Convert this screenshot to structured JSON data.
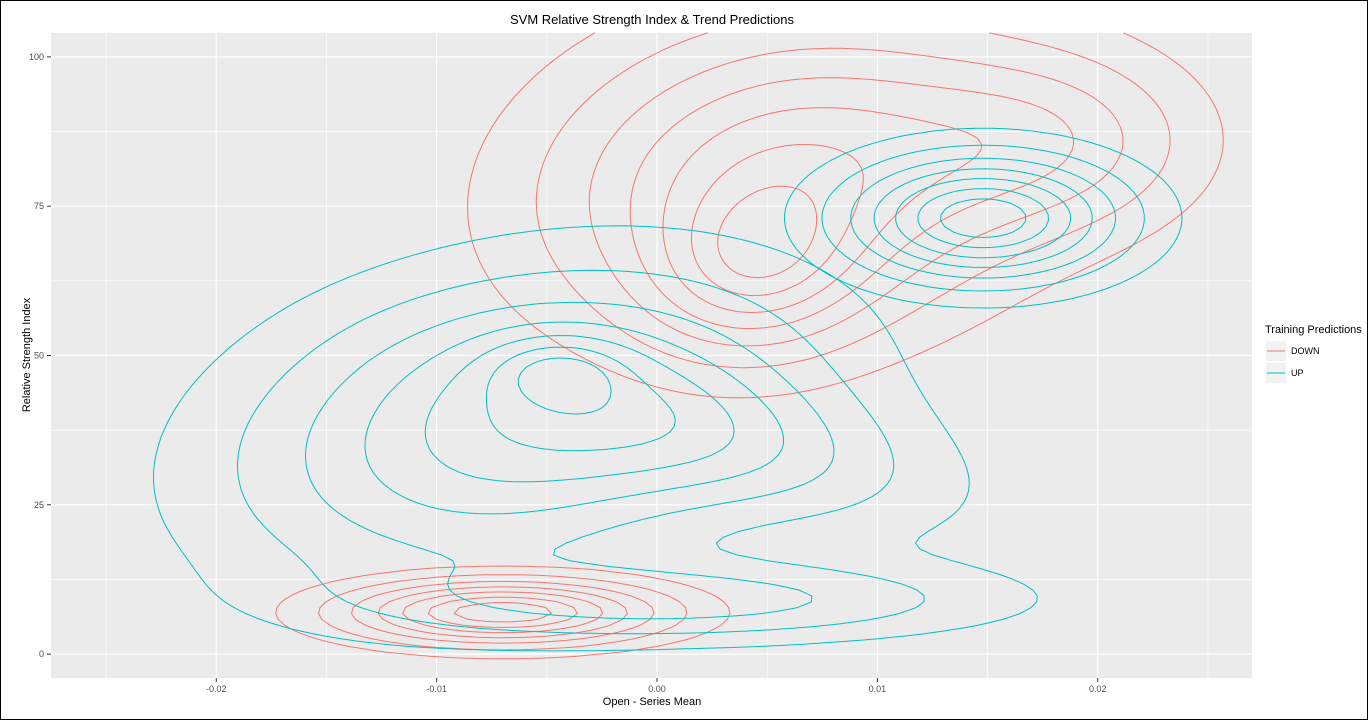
{
  "chart_data": {
    "type": "contour",
    "title": "SVM Relative Strength Index & Trend Predictions",
    "xlabel": "Open - Series Mean",
    "ylabel": "Relative Strength Index",
    "xlim": [
      -0.0275,
      0.027
    ],
    "ylim": [
      -4,
      104
    ],
    "x_ticks": [
      -0.02,
      -0.01,
      0.0,
      0.01,
      0.02
    ],
    "x_tick_labels": [
      "-0.02",
      "-0.01",
      "0.00",
      "0.01",
      "0.02"
    ],
    "y_ticks": [
      0,
      25,
      50,
      75,
      100
    ],
    "y_tick_labels": [
      "0",
      "25",
      "50",
      "75",
      "100"
    ],
    "grid": true,
    "legend": {
      "title": "Training Predictions",
      "position": "right",
      "entries": [
        {
          "label": "DOWN",
          "color": "#F8766D"
        },
        {
          "label": "UP",
          "color": "#00BFC4"
        }
      ]
    },
    "panel_background": "#EBEBEB",
    "grid_color": "#FFFFFF",
    "series": [
      {
        "name": "DOWN",
        "color": "#F8766D",
        "components": [
          {
            "mode_a": {
              "cx": 0.006,
              "cy": 80,
              "sx": 0.0072,
              "sy": 17,
              "rho": 0.15,
              "w": 1.0
            },
            "mode_b": {
              "cx": 0.0045,
              "cy": 64,
              "sx": 0.0032,
              "sy": 9,
              "rho": 0.1,
              "w": 0.55
            },
            "mode_c": {
              "cx": 0.018,
              "cy": 86,
              "sx": 0.0045,
              "sy": 10,
              "rho": 0.0,
              "w": 0.45
            }
          },
          {
            "mode_a": {
              "cx": -0.007,
              "cy": 7,
              "sx": 0.0048,
              "sy": 3.6,
              "rho": 0.0,
              "w": 1.0
            }
          }
        ]
      },
      {
        "name": "UP",
        "color": "#00BFC4",
        "components": [
          {
            "mode_a": {
              "cx": -0.006,
              "cy": 38,
              "sx": 0.0085,
              "sy": 17,
              "rho": 0.25,
              "w": 1.0
            },
            "mode_b": {
              "cx": -0.0045,
              "cy": 48,
              "sx": 0.0022,
              "sy": 4,
              "rho": 0.0,
              "w": 0.35
            },
            "mode_c": {
              "cx": 0.002,
              "cy": 9,
              "sx": 0.009,
              "sy": 4.5,
              "rho": 0.0,
              "w": 0.55
            },
            "mode_d": {
              "cx": 0.003,
              "cy": 36,
              "sx": 0.007,
              "sy": 10,
              "rho": -0.55,
              "w": 0.4
            }
          },
          {
            "mode_a": {
              "cx": 0.0148,
              "cy": 73,
              "sx": 0.0042,
              "sy": 7,
              "rho": 0.0,
              "w": 1.0
            }
          }
        ]
      }
    ],
    "contour_levels": [
      0.1,
      0.22,
      0.36,
      0.5,
      0.64,
      0.78,
      0.9
    ]
  }
}
